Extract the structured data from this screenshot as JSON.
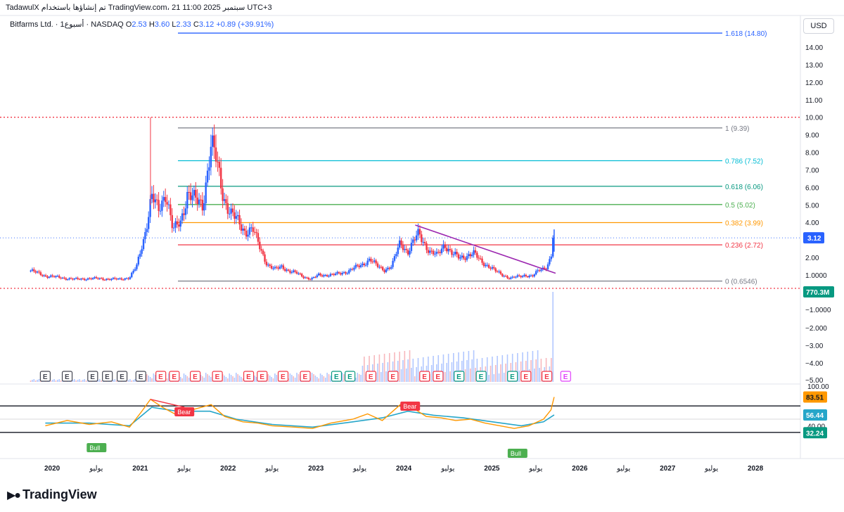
{
  "header": {
    "text": "TadawulX تم إنشاؤها باستخدام TradingView.com، 21 سبتمبر 2025 11:00 UTC+3"
  },
  "legend": {
    "symbol": "Bitfarms Ltd. · 1أسبوع · NASDAQ",
    "o_label": "O",
    "o": "2.53",
    "h_label": "H",
    "h": "3.60",
    "l_label": "L",
    "l": "2.33",
    "c_label": "C",
    "c": "3.12",
    "change": "+0.89 (+39.91%)"
  },
  "currency_button": "USD",
  "brand": "TradingView",
  "colors": {
    "up": "#2962ff",
    "down": "#f23645",
    "volume_up": "#b2c8ff",
    "volume_down": "#f7b8bd",
    "trendline": "#9c27b0",
    "rsi": "#ff9800",
    "rsi_ma": "#26a6c9",
    "earnings_red": "#f23645",
    "earnings_green": "#089981",
    "earnings_gray": "#434651",
    "earnings_purple": "#e040fb"
  },
  "chart_data": [
    {
      "type": "candlestick",
      "interval": "weekly",
      "ylabel": "",
      "price_axis_ticks": [
        "14.00",
        "13.00",
        "12.00",
        "11.00",
        "10.00",
        "9.00",
        "8.00",
        "7.00",
        "6.00",
        "5.00",
        "4.00",
        "3.00",
        "2.00",
        "1.0000"
      ],
      "time_axis_labels": [
        "2020",
        "يوليو",
        "2021",
        "يوليو",
        "2022",
        "يوليو",
        "2023",
        "يوليو",
        "2024",
        "يوليو",
        "2025",
        "يوليو",
        "2026",
        "يوليو",
        "2027",
        "يوليو",
        "2028"
      ],
      "time_axis_dates": [
        "2020-01-01",
        "2020-07-01",
        "2021-01-01",
        "2021-07-01",
        "2022-01-01",
        "2022-07-01",
        "2023-01-01",
        "2023-07-01",
        "2024-01-01",
        "2024-07-01",
        "2025-01-01",
        "2025-07-01",
        "2026-01-01",
        "2026-07-01",
        "2027-01-01",
        "2027-07-01",
        "2028-01-01"
      ],
      "close_path": [
        [
          "2019-10-01",
          1.25
        ],
        [
          "2019-12-01",
          0.95
        ],
        [
          "2020-02-01",
          0.85
        ],
        [
          "2020-04-01",
          0.75
        ],
        [
          "2020-06-01",
          0.8
        ],
        [
          "2020-08-01",
          0.78
        ],
        [
          "2020-10-01",
          0.75
        ],
        [
          "2020-11-15",
          0.85
        ],
        [
          "2020-12-15",
          1.5
        ],
        [
          "2021-01-15",
          3.2
        ],
        [
          "2021-02-15",
          5.5
        ],
        [
          "2021-03-15",
          4.6
        ],
        [
          "2021-04-15",
          5.8
        ],
        [
          "2021-05-15",
          3.5
        ],
        [
          "2021-06-15",
          4.0
        ],
        [
          "2021-07-15",
          5.8
        ],
        [
          "2021-08-15",
          5.2
        ],
        [
          "2021-09-15",
          5.0
        ],
        [
          "2021-10-20",
          8.5
        ],
        [
          "2021-11-10",
          7.5
        ],
        [
          "2021-12-10",
          5.5
        ],
        [
          "2022-01-10",
          4.5
        ],
        [
          "2022-02-10",
          4.0
        ],
        [
          "2022-03-10",
          3.5
        ],
        [
          "2022-04-10",
          3.6
        ],
        [
          "2022-05-10",
          2.6
        ],
        [
          "2022-06-10",
          1.6
        ],
        [
          "2022-07-10",
          1.3
        ],
        [
          "2022-08-10",
          1.5
        ],
        [
          "2022-09-10",
          1.2
        ],
        [
          "2022-10-10",
          1.1
        ],
        [
          "2022-11-10",
          0.9
        ],
        [
          "2022-12-10",
          0.75
        ],
        [
          "2023-01-10",
          1.0
        ],
        [
          "2023-03-10",
          1.0
        ],
        [
          "2023-05-10",
          1.2
        ],
        [
          "2023-07-10",
          1.6
        ],
        [
          "2023-08-10",
          1.9
        ],
        [
          "2023-09-10",
          1.5
        ],
        [
          "2023-10-10",
          1.3
        ],
        [
          "2023-11-10",
          1.5
        ],
        [
          "2023-12-15",
          2.9
        ],
        [
          "2024-01-15",
          2.3
        ],
        [
          "2024-03-01",
          3.4
        ],
        [
          "2024-04-15",
          2.3
        ],
        [
          "2024-05-15",
          2.1
        ],
        [
          "2024-06-15",
          2.8
        ],
        [
          "2024-07-15",
          2.2
        ],
        [
          "2024-08-15",
          2.0
        ],
        [
          "2024-09-15",
          2.1
        ],
        [
          "2024-10-15",
          2.2
        ],
        [
          "2024-11-15",
          1.8
        ],
        [
          "2024-12-15",
          1.5
        ],
        [
          "2025-01-15",
          1.2
        ],
        [
          "2025-02-15",
          1.0
        ],
        [
          "2025-03-15",
          0.8
        ],
        [
          "2025-04-15",
          0.9
        ],
        [
          "2025-05-15",
          1.0
        ],
        [
          "2025-06-15",
          0.9
        ],
        [
          "2025-07-15",
          1.3
        ],
        [
          "2025-08-15",
          1.5
        ],
        [
          "2025-09-01",
          2.0
        ],
        [
          "2025-09-14",
          3.12
        ]
      ],
      "last_close": 3.12,
      "last_price_label": "3.12",
      "fib_levels": [
        {
          "level": "1.618",
          "value": 14.8,
          "label": "1.618 (14.80)",
          "color": "#2962ff"
        },
        {
          "level": "1",
          "value": 9.39,
          "label": "1 (9.39)",
          "color": "#787b86"
        },
        {
          "level": "0.786",
          "value": 7.52,
          "label": "0.786 (7.52)",
          "color": "#00bcd4"
        },
        {
          "level": "0.618",
          "value": 6.06,
          "label": "0.618 (6.06)",
          "color": "#089981"
        },
        {
          "level": "0.5",
          "value": 5.02,
          "label": "0.5 (5.02)",
          "color": "#4caf50"
        },
        {
          "level": "0.382",
          "value": 3.99,
          "label": "0.382 (3.99)",
          "color": "#ff9800"
        },
        {
          "level": "0.236",
          "value": 2.72,
          "label": "0.236 (2.72)",
          "color": "#f23645"
        },
        {
          "level": "0",
          "value": 0.6546,
          "label": "0 (0.6546)",
          "color": "#787b86"
        }
      ],
      "horizontal_lines": [
        {
          "value": 10.0,
          "style": "dotted",
          "color": "#f23645"
        },
        {
          "value": 0.45,
          "style": "dotted",
          "color": "#f23645"
        }
      ],
      "trendline": {
        "from": [
          "2024-02-15",
          3.85
        ],
        "to": [
          "2025-09-20",
          1.1
        ],
        "color": "#9c27b0"
      }
    },
    {
      "type": "bar",
      "name": "Volume",
      "last_value_label": "770.3M",
      "axis_ticks": [
        "−1.0000",
        "−2.000",
        "−3.00",
        "−4.00",
        "−5.00"
      ],
      "shape": "low through 2023, higher bars 2024–2025, spike in Sep 2025"
    },
    {
      "type": "line",
      "name": "RSI",
      "axis_ticks": [
        "100.00",
        "40.00"
      ],
      "upper_band": 70,
      "lower_band": 30,
      "last_value": 83.51,
      "ma_last_value": 56.44,
      "band_label": "32.24",
      "rsi_path": [
        [
          "2019-12-01",
          40
        ],
        [
          "2020-03-01",
          48
        ],
        [
          "2020-06-01",
          42
        ],
        [
          "2020-09-01",
          46
        ],
        [
          "2020-11-15",
          38
        ],
        [
          "2021-01-01",
          60
        ],
        [
          "2021-02-10",
          80
        ],
        [
          "2021-04-01",
          68
        ],
        [
          "2021-06-01",
          56
        ],
        [
          "2021-08-01",
          64
        ],
        [
          "2021-10-20",
          72
        ],
        [
          "2021-12-15",
          54
        ],
        [
          "2022-03-01",
          46
        ],
        [
          "2022-05-01",
          44
        ],
        [
          "2022-07-01",
          40
        ],
        [
          "2022-10-01",
          38
        ],
        [
          "2022-12-15",
          36
        ],
        [
          "2023-03-01",
          44
        ],
        [
          "2023-06-01",
          50
        ],
        [
          "2023-08-01",
          58
        ],
        [
          "2023-10-01",
          48
        ],
        [
          "2023-12-15",
          72
        ],
        [
          "2024-02-01",
          68
        ],
        [
          "2024-04-01",
          54
        ],
        [
          "2024-06-01",
          52
        ],
        [
          "2024-08-01",
          48
        ],
        [
          "2024-10-01",
          50
        ],
        [
          "2024-12-01",
          44
        ],
        [
          "2025-02-01",
          40
        ],
        [
          "2025-04-01",
          36
        ],
        [
          "2025-06-01",
          40
        ],
        [
          "2025-08-01",
          50
        ],
        [
          "2025-09-01",
          64
        ],
        [
          "2025-09-14",
          83.51
        ]
      ],
      "ma_path": [
        [
          "2019-12-01",
          44
        ],
        [
          "2020-06-01",
          44
        ],
        [
          "2020-11-15",
          40
        ],
        [
          "2021-02-15",
          68
        ],
        [
          "2021-06-01",
          62
        ],
        [
          "2021-10-15",
          62
        ],
        [
          "2022-02-01",
          50
        ],
        [
          "2022-07-01",
          42
        ],
        [
          "2022-12-15",
          38
        ],
        [
          "2023-06-01",
          46
        ],
        [
          "2023-10-01",
          52
        ],
        [
          "2024-01-15",
          62
        ],
        [
          "2024-05-01",
          56
        ],
        [
          "2024-09-01",
          52
        ],
        [
          "2025-01-01",
          46
        ],
        [
          "2025-05-01",
          40
        ],
        [
          "2025-08-01",
          46
        ],
        [
          "2025-09-14",
          56.44
        ]
      ],
      "divergence_labels": [
        {
          "text": "Bull",
          "date": "2020-07-01",
          "kind": "bull"
        },
        {
          "text": "Bear",
          "date": "2021-07-01",
          "kind": "bear"
        },
        {
          "text": "Bear",
          "date": "2024-01-25",
          "kind": "bear"
        },
        {
          "text": "Bull",
          "date": "2025-04-15",
          "kind": "bull"
        }
      ]
    }
  ],
  "earnings_markers": [
    {
      "text": "E",
      "date": "2019-12-01",
      "color": "gray"
    },
    {
      "text": "E",
      "date": "2020-03-01",
      "color": "gray"
    },
    {
      "text": "E",
      "date": "2020-06-15",
      "color": "gray"
    },
    {
      "text": "E",
      "date": "2020-08-15",
      "color": "gray"
    },
    {
      "text": "E",
      "date": "2020-10-15",
      "color": "gray"
    },
    {
      "text": "E",
      "date": "2021-01-01",
      "color": "gray"
    },
    {
      "text": "E",
      "date": "2021-03-25",
      "color": "red"
    },
    {
      "text": "E",
      "date": "2021-05-20",
      "color": "red"
    },
    {
      "text": "E",
      "date": "2021-08-15",
      "color": "red"
    },
    {
      "text": "E",
      "date": "2021-11-15",
      "color": "red"
    },
    {
      "text": "E",
      "date": "2022-03-25",
      "color": "red"
    },
    {
      "text": "E",
      "date": "2022-05-20",
      "color": "red"
    },
    {
      "text": "E",
      "date": "2022-08-15",
      "color": "red"
    },
    {
      "text": "E",
      "date": "2022-11-15",
      "color": "red"
    },
    {
      "text": "E",
      "date": "2023-03-25",
      "color": "green"
    },
    {
      "text": "E",
      "date": "2023-05-20",
      "color": "green"
    },
    {
      "text": "E",
      "date": "2023-08-15",
      "color": "red"
    },
    {
      "text": "E",
      "date": "2023-11-15",
      "color": "red"
    },
    {
      "text": "E",
      "date": "2024-03-25",
      "color": "red"
    },
    {
      "text": "E",
      "date": "2024-05-20",
      "color": "red"
    },
    {
      "text": "E",
      "date": "2024-08-15",
      "color": "green"
    },
    {
      "text": "E",
      "date": "2024-11-15",
      "color": "green"
    },
    {
      "text": "E",
      "date": "2025-03-25",
      "color": "green"
    },
    {
      "text": "E",
      "date": "2025-05-20",
      "color": "red"
    },
    {
      "text": "E",
      "date": "2025-08-15",
      "color": "red"
    },
    {
      "text": "E",
      "date": "2025-11-01",
      "color": "purple"
    }
  ]
}
